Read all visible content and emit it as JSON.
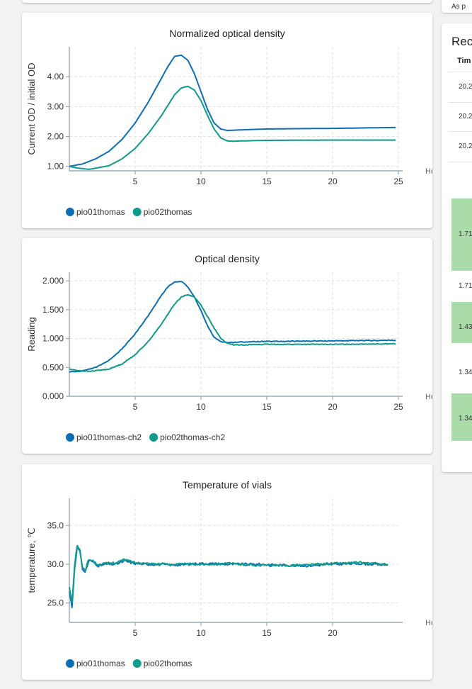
{
  "recent_panel": {
    "title": "Rec",
    "header_time": "Tim",
    "top_text": "As p",
    "time_rows": [
      "20.2",
      "20.2",
      "20.2"
    ],
    "cells": [
      {
        "text": "1.71",
        "green": true
      },
      {
        "text": "1.71",
        "green": false
      },
      {
        "text": "1.43",
        "green": true
      },
      {
        "text": "1.34",
        "green": false
      },
      {
        "text": "1.34",
        "green": true
      }
    ]
  },
  "colors": {
    "series1": "#0b6fb7",
    "series2": "#0f9a8a"
  },
  "chart_data": [
    {
      "type": "line",
      "title": "Normalized optical density",
      "ylabel": "Current OD / initial OD",
      "xlabel": "Hours",
      "xlim": [
        0,
        25
      ],
      "ylim": [
        0.85,
        5.0
      ],
      "xticks": [
        5,
        10,
        15,
        20,
        25
      ],
      "xtick_labels": [
        "5",
        "10",
        "15",
        "20",
        "25"
      ],
      "yticks": [
        1.0,
        2.0,
        3.0,
        4.0
      ],
      "ytick_labels": [
        "1.00",
        "2.00",
        "3.00",
        "4.00"
      ],
      "legend": "bottom-left",
      "grid": true,
      "series": [
        {
          "name": "pio01thomas",
          "x": [
            0,
            1,
            2,
            3,
            4,
            5,
            6,
            7,
            7.5,
            8,
            8.5,
            9,
            9.5,
            10,
            10.5,
            11,
            11.5,
            12,
            13,
            15,
            17,
            20,
            23,
            24.8
          ],
          "y": [
            1.0,
            1.08,
            1.25,
            1.5,
            1.9,
            2.45,
            3.15,
            3.95,
            4.35,
            4.68,
            4.72,
            4.55,
            4.1,
            3.5,
            2.9,
            2.45,
            2.25,
            2.2,
            2.22,
            2.25,
            2.26,
            2.27,
            2.29,
            2.3
          ]
        },
        {
          "name": "pio02thomas",
          "x": [
            0,
            0.5,
            1.5,
            3,
            4,
            5,
            6,
            7,
            7.5,
            8,
            8.5,
            9,
            9.5,
            10,
            10.5,
            11,
            11.5,
            12,
            12.5,
            13,
            15,
            20,
            24.8
          ],
          "y": [
            1.0,
            0.95,
            0.9,
            1.02,
            1.25,
            1.6,
            2.1,
            2.7,
            3.05,
            3.4,
            3.62,
            3.68,
            3.55,
            3.2,
            2.7,
            2.25,
            1.95,
            1.85,
            1.84,
            1.85,
            1.87,
            1.88,
            1.88
          ]
        }
      ]
    },
    {
      "type": "line",
      "title": "Optical density",
      "ylabel": "Reading",
      "xlabel": "Hours",
      "xlim": [
        0,
        25
      ],
      "ylim": [
        0,
        2.15
      ],
      "xticks": [
        5,
        10,
        15,
        20,
        25
      ],
      "xtick_labels": [
        "5",
        "10",
        "15",
        "20",
        "25"
      ],
      "yticks": [
        0,
        0.5,
        1.0,
        1.5,
        2.0
      ],
      "ytick_labels": [
        "0.000",
        "0.500",
        "1.000",
        "1.500",
        "2.000"
      ],
      "legend": "bottom-left",
      "grid": true,
      "series": [
        {
          "name": "pio01thomas-ch2",
          "x": [
            0,
            1,
            2,
            3,
            4,
            5,
            6,
            7,
            7.5,
            8,
            8.5,
            9,
            9.5,
            10,
            10.5,
            11,
            11.5,
            12,
            13,
            15,
            20,
            24.8
          ],
          "y": [
            0.42,
            0.44,
            0.5,
            0.62,
            0.82,
            1.08,
            1.4,
            1.75,
            1.9,
            1.98,
            1.99,
            1.9,
            1.72,
            1.48,
            1.22,
            1.02,
            0.95,
            0.93,
            0.94,
            0.95,
            0.96,
            0.97
          ]
        },
        {
          "name": "pio02thomas-ch2",
          "x": [
            0,
            0.5,
            1.5,
            3,
            4,
            5,
            6,
            7,
            7.5,
            8,
            8.5,
            9,
            9.5,
            10,
            10.5,
            11,
            11.5,
            12,
            12.5,
            13,
            15,
            20,
            24.8
          ],
          "y": [
            0.47,
            0.45,
            0.43,
            0.47,
            0.56,
            0.72,
            0.95,
            1.25,
            1.43,
            1.6,
            1.72,
            1.76,
            1.72,
            1.58,
            1.38,
            1.18,
            1.0,
            0.92,
            0.89,
            0.89,
            0.9,
            0.9,
            0.91
          ]
        }
      ]
    },
    {
      "type": "line",
      "title": "Temperature of vials",
      "ylabel": "temperature, ℃",
      "xlabel": "Hours",
      "xlim": [
        0,
        25
      ],
      "ylim": [
        22.5,
        38.5
      ],
      "xticks": [
        5,
        10,
        15,
        20
      ],
      "xtick_labels": [
        "5",
        "10",
        "15",
        "20"
      ],
      "yticks": [
        25.0,
        30.0,
        35.0
      ],
      "ytick_labels": [
        "25.0",
        "30.0",
        "35.0"
      ],
      "legend": "bottom-left",
      "grid": true,
      "series": [
        {
          "name": "pio01thomas",
          "x": [
            0,
            0.2,
            0.4,
            0.6,
            0.8,
            1.0,
            1.2,
            1.5,
            1.8,
            2.2,
            2.8,
            3.5,
            4.2,
            5,
            6,
            8,
            10,
            12,
            14,
            16,
            18,
            20,
            22,
            24.2
          ],
          "y": [
            26.5,
            24.5,
            29.5,
            32.3,
            31.6,
            29.4,
            29.0,
            30.5,
            30.3,
            29.8,
            30.0,
            30.0,
            30.4,
            30.1,
            30.0,
            29.9,
            30.1,
            30.0,
            30.0,
            29.9,
            29.8,
            30.0,
            30.1,
            29.9
          ]
        },
        {
          "name": "pio02thomas",
          "x": [
            0,
            0.2,
            0.4,
            0.6,
            0.8,
            1.0,
            1.2,
            1.5,
            1.8,
            2.2,
            2.8,
            3.5,
            4.2,
            5,
            6,
            8,
            10,
            12,
            14,
            16,
            18,
            20,
            22,
            24.2
          ],
          "y": [
            27.0,
            25.0,
            29.8,
            32.5,
            31.8,
            29.6,
            29.2,
            30.7,
            30.4,
            29.9,
            30.1,
            30.2,
            30.6,
            30.2,
            30.1,
            30.0,
            30.0,
            30.1,
            29.9,
            29.8,
            29.9,
            30.1,
            30.2,
            30.0
          ]
        }
      ]
    }
  ]
}
